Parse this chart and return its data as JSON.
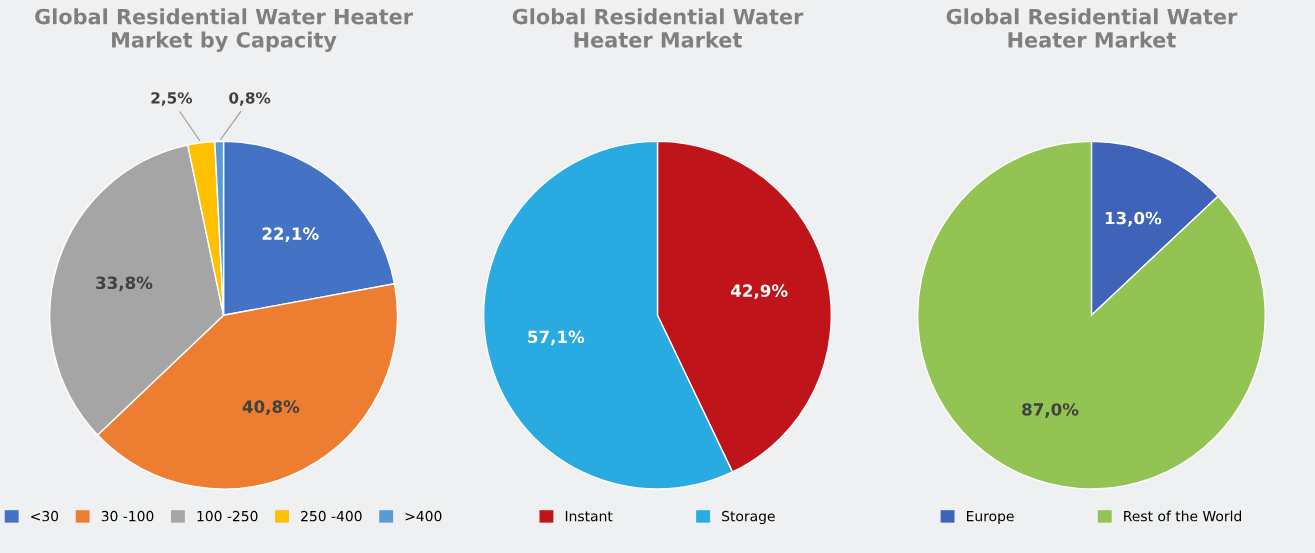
{
  "chart_data": [
    {
      "type": "pie",
      "title": "Global Residential Water Heater\nMarket by Capacity",
      "categories": [
        "<30",
        "30 -100",
        "100 -250",
        "250 -400",
        ">400"
      ],
      "values": [
        22.1,
        40.8,
        33.8,
        2.5,
        0.8
      ],
      "value_labels": [
        "22,1%",
        "40,8%",
        "33,8%",
        "2,5%",
        "0,8%"
      ],
      "colors": [
        "#4472c4",
        "#ed7d31",
        "#a5a5a5",
        "#ffc000",
        "#5b9bd5"
      ],
      "legend": "bottom"
    },
    {
      "type": "pie",
      "title": "Global Residential Water\nHeater Market",
      "categories": [
        "Instant",
        "Storage"
      ],
      "values": [
        42.9,
        57.1
      ],
      "value_labels": [
        "42,9%",
        "57,1%"
      ],
      "colors": [
        "#c0141b",
        "#29abe2"
      ],
      "legend": "bottom"
    },
    {
      "type": "pie",
      "title": "Global Residential Water\nHeater Market",
      "categories": [
        "Europe",
        "Rest of the World"
      ],
      "values": [
        13.0,
        87.0
      ],
      "value_labels": [
        "13,0%",
        "87,0%"
      ],
      "colors": [
        "#3e63b8",
        "#92c353"
      ],
      "legend": "bottom"
    }
  ]
}
